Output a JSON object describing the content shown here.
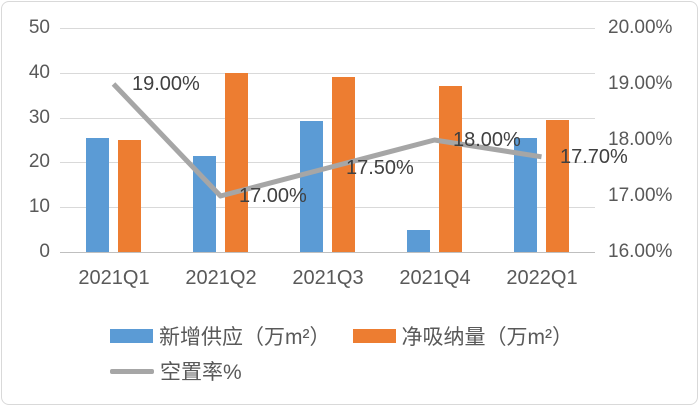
{
  "chart_data": {
    "type": "combo",
    "categories": [
      "2021Q1",
      "2021Q2",
      "2021Q3",
      "2021Q4",
      "2022Q1"
    ],
    "series": [
      {
        "key": "new-supply",
        "name": "新增供应（万m²）",
        "type": "bar",
        "axis": "left",
        "color": "#5B9BD5",
        "values": [
          25.5,
          21.5,
          29.3,
          5.0,
          25.4
        ]
      },
      {
        "key": "net-absorption",
        "name": "净吸纳量（万m²）",
        "type": "bar",
        "axis": "left",
        "color": "#ED7D31",
        "values": [
          25.0,
          40.0,
          39.0,
          37.0,
          29.4
        ]
      },
      {
        "key": "vacancy-rate",
        "name": "空置率%",
        "type": "line",
        "axis": "right",
        "color": "#A6A6A6",
        "values": [
          19.0,
          17.0,
          17.5,
          18.0,
          17.7
        ],
        "point_labels": [
          "19.00%",
          "17.00%",
          "17.50%",
          "18.00%",
          "17.70%"
        ]
      }
    ],
    "left_axis": {
      "min": 0,
      "max": 50,
      "step": 10,
      "ticks": [
        "0",
        "10",
        "20",
        "30",
        "40",
        "50"
      ]
    },
    "right_axis": {
      "min": 16,
      "max": 20,
      "step": 1,
      "ticks": [
        "16.00%",
        "17.00%",
        "18.00%",
        "19.00%",
        "20.00%"
      ]
    },
    "grid": true,
    "legend_position": "bottom-left",
    "colors": {
      "gridline": "#D9D9D9",
      "axis_text": "#595959",
      "point_label_text": "#404040",
      "border": "#D9D9D9"
    }
  },
  "legend": {
    "items": [
      {
        "label": "新增供应（万m²）",
        "swatch": "rect",
        "color": "#5B9BD5"
      },
      {
        "label": "净吸纳量（万m²）",
        "swatch": "rect",
        "color": "#ED7D31"
      },
      {
        "label": "空置率%",
        "swatch": "line",
        "color": "#A6A6A6"
      }
    ]
  }
}
